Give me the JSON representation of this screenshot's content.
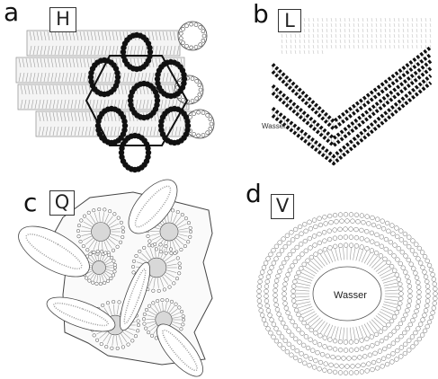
{
  "panels": [
    {
      "letter": "a",
      "tag": "H"
    },
    {
      "letter": "b",
      "tag": "L",
      "label": "Wasser"
    },
    {
      "letter": "c",
      "tag": "Q"
    },
    {
      "letter": "d",
      "tag": "V",
      "label": "Wasser"
    }
  ],
  "colors": {
    "ink": "#111111",
    "line": "#444444",
    "light": "#9a9a9a",
    "shade": "#d8d8d8"
  }
}
